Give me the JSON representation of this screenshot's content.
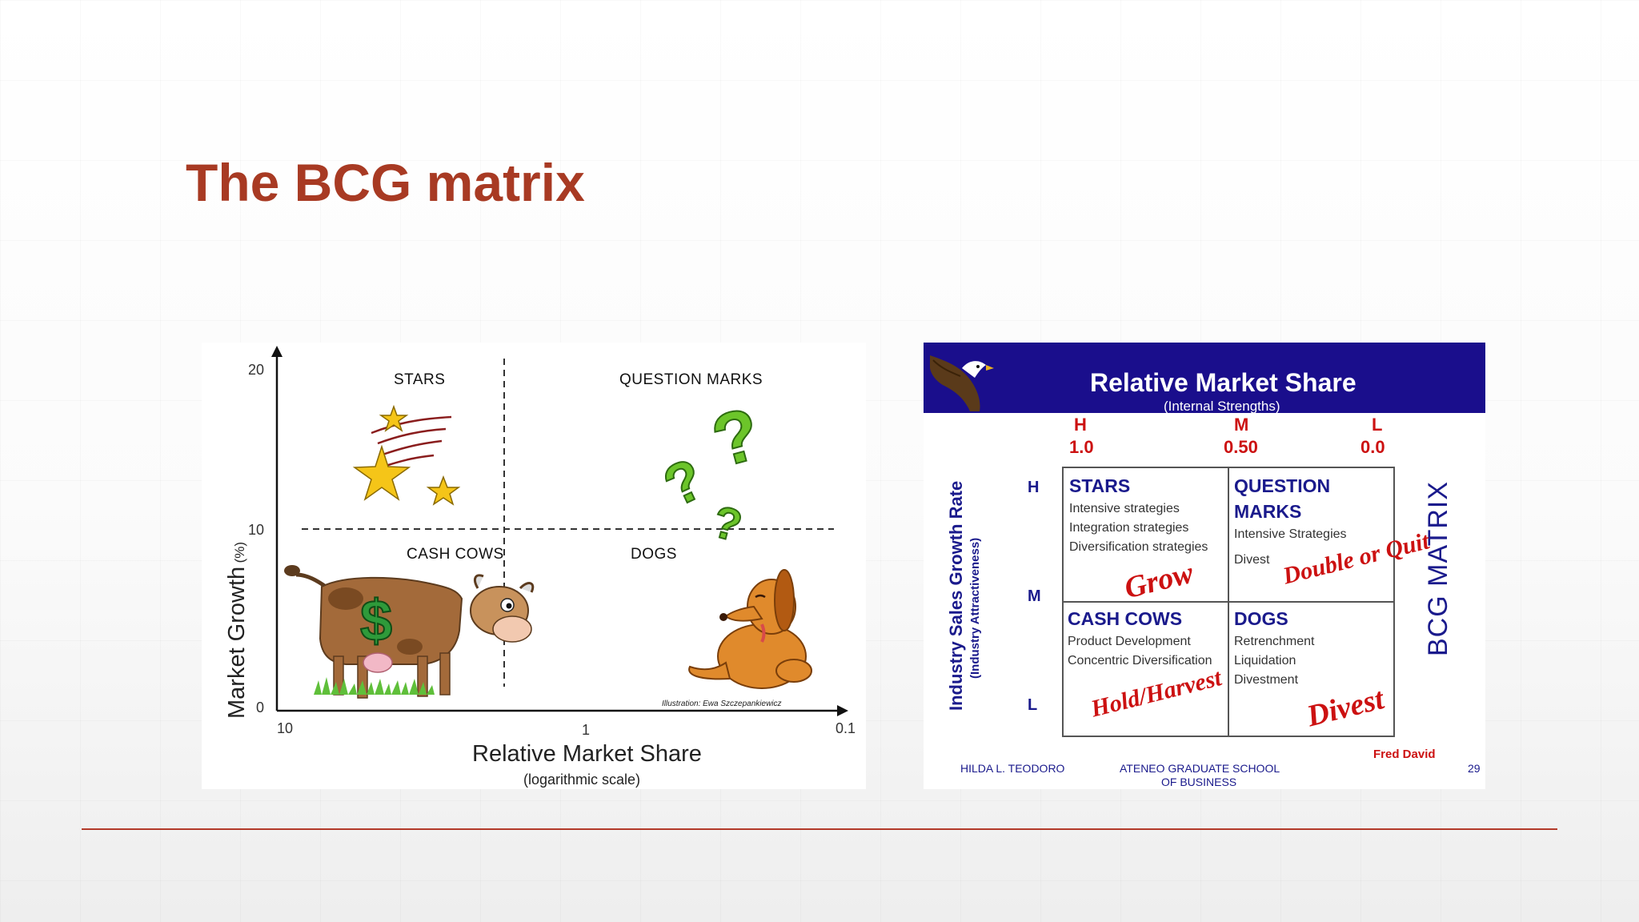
{
  "slide": {
    "title": "The BCG matrix"
  },
  "left_chart": {
    "quadrants": {
      "stars": "STARS",
      "question_marks": "QUESTION MARKS",
      "cash_cows": "CASH COWS",
      "dogs": "DOGS"
    },
    "y_ticks": [
      "20",
      "10",
      "0"
    ],
    "x_ticks": [
      "10",
      "1",
      "0.1"
    ],
    "y_label": "Market Growth",
    "y_unit": "(%)",
    "x_label": "Relative Market Share",
    "x_sublabel": "(logarithmic scale)",
    "credit": "Illustration: Ewa Szczepankiewicz"
  },
  "right_chart": {
    "banner_title": "Relative Market Share",
    "banner_subtitle": "(Internal Strengths)",
    "col_letters": [
      "H",
      "M",
      "L"
    ],
    "col_values": [
      "1.0",
      "0.50",
      "0.0"
    ],
    "row_letters": [
      "H",
      "M",
      "L"
    ],
    "y_label": "Industry Sales Growth Rate",
    "y_sublabel": "(Industry Attractiveness)",
    "side_label": "BCG MATRIX",
    "stars": {
      "title": "STARS",
      "lines": [
        "Intensive strategies",
        "Integration strategies",
        "Diversification strategies"
      ],
      "action": "Grow"
    },
    "question_marks": {
      "title_line1": "QUESTION",
      "title_line2": "MARKS",
      "lines": [
        "Intensive Strategies",
        "Divest"
      ],
      "action": "Double or Quit"
    },
    "cash_cows": {
      "title": "CASH COWS",
      "lines": [
        "Product Development",
        "Concentric Diversification"
      ],
      "action": "Hold/Harvest"
    },
    "dogs": {
      "title": "DOGS",
      "lines": [
        "Retrenchment",
        "Liquidation",
        "Divestment"
      ],
      "action": "Divest"
    },
    "author": "Fred David",
    "footer_left": "HILDA L. TEODORO",
    "footer_mid_1": "ATENEO GRADUATE SCHOOL",
    "footer_mid_2": "OF BUSINESS",
    "page_number": "29"
  }
}
